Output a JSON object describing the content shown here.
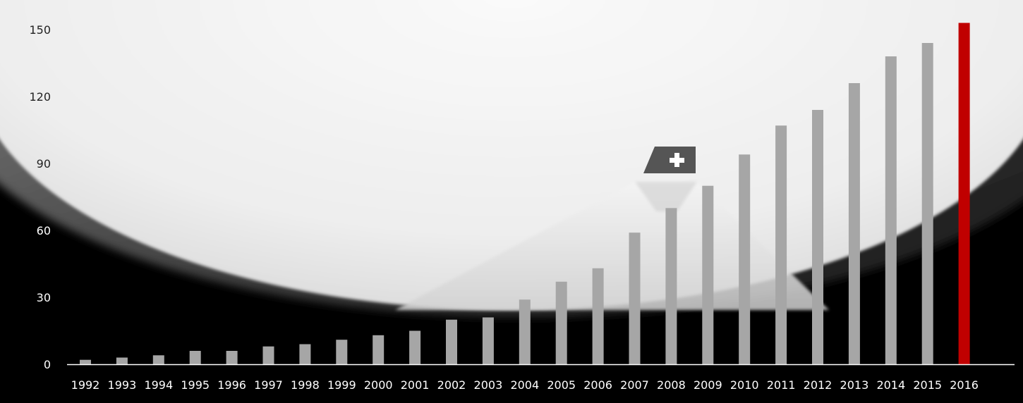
{
  "chart_data": {
    "type": "bar",
    "title": "",
    "xlabel": "",
    "ylabel": "",
    "categories": [
      "1992",
      "1993",
      "1994",
      "1995",
      "1996",
      "1997",
      "1998",
      "1999",
      "2000",
      "2001",
      "2002",
      "2003",
      "2004",
      "2005",
      "2006",
      "2007",
      "2008",
      "2009",
      "2010",
      "2011",
      "2012",
      "2013",
      "2014",
      "2015",
      "2016"
    ],
    "values": [
      2,
      3,
      4,
      6,
      6,
      8,
      9,
      11,
      13,
      15,
      20,
      21,
      29,
      37,
      43,
      59,
      70,
      80,
      94,
      107,
      114,
      126,
      138,
      144,
      153
    ],
    "ylim": [
      0,
      150
    ],
    "yticks": [
      "0",
      "30",
      "60",
      "90",
      "120",
      "150"
    ],
    "grid": false,
    "legend": "none",
    "highlight_category": "2016",
    "colors": {
      "bar": "#a6a6a6",
      "highlight": "#c00000",
      "axis": "#ffffff",
      "background_dark": "#000000",
      "background_light": "#f3f3f3"
    }
  },
  "background": {
    "icon": "swiss-cross-icon",
    "description_icons": [
      "aircraft-window-frame-icon",
      "aircraft-tail-icon"
    ]
  }
}
